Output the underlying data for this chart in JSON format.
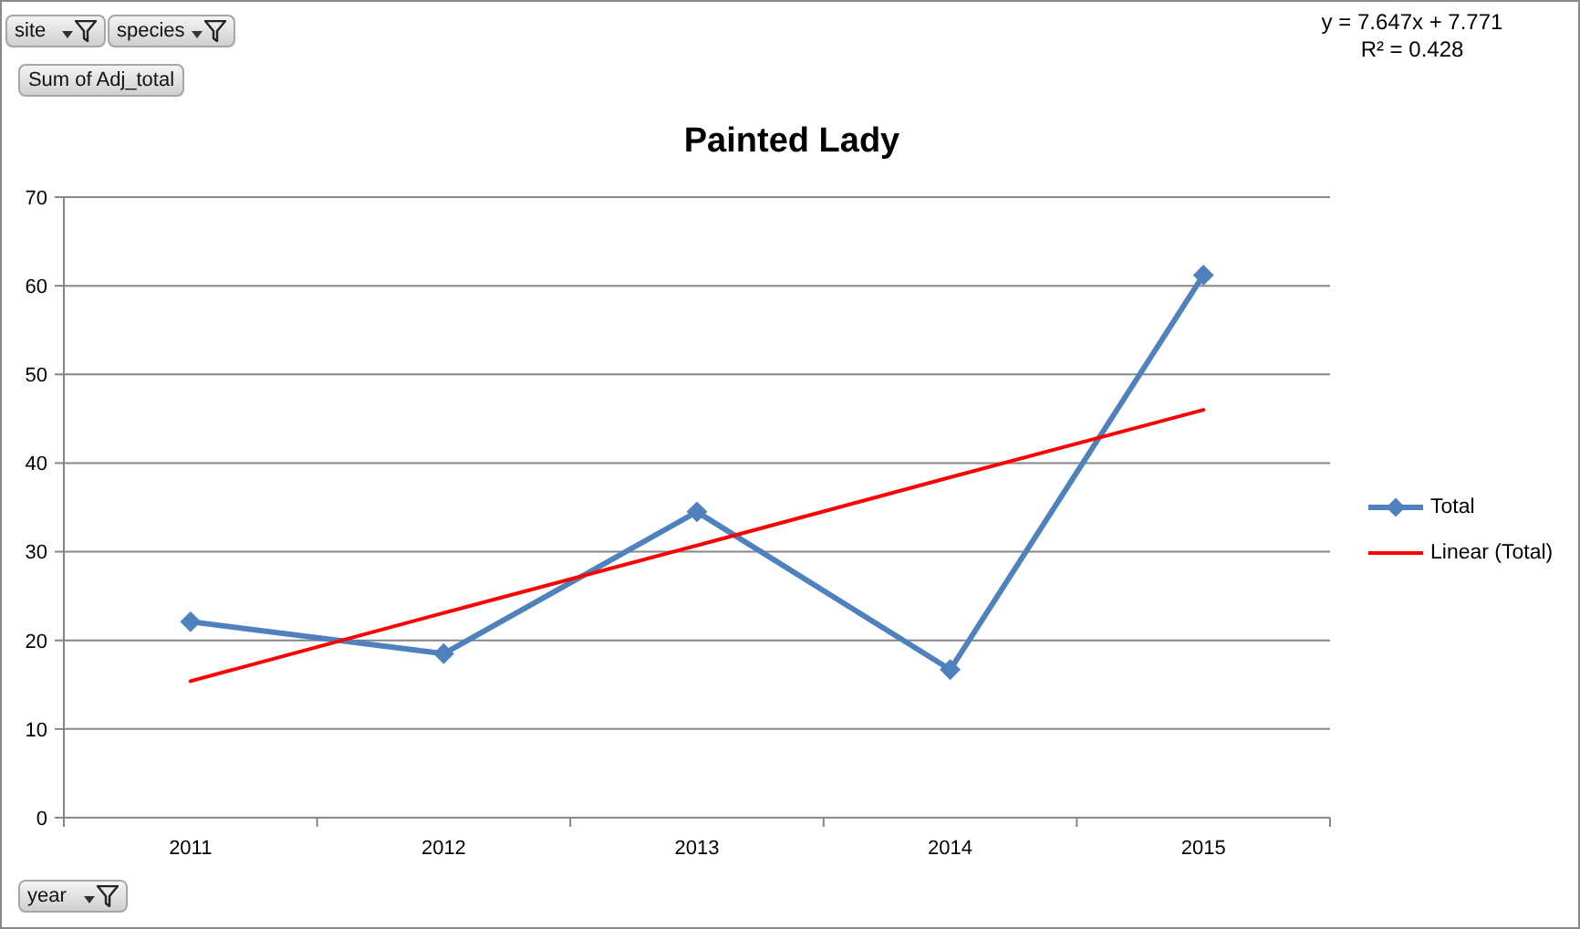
{
  "chart_data": {
    "type": "line",
    "title": "Painted Lady",
    "categories": [
      "2011",
      "2012",
      "2013",
      "2014",
      "2015"
    ],
    "series": [
      {
        "name": "Total",
        "color": "#4f81bd",
        "values": [
          22.1,
          18.5,
          34.5,
          16.7,
          61.2
        ]
      },
      {
        "name": "Linear (Total)",
        "type": "line",
        "color": "#ff0000",
        "values": [
          15.4,
          23.1,
          30.7,
          38.4,
          46
        ],
        "marker": "none"
      }
    ],
    "ylim": [
      0,
      70
    ],
    "yticks": [
      0,
      10,
      20,
      30,
      40,
      50,
      60,
      70
    ],
    "grid": "y",
    "legend": "right",
    "marker": "diamond",
    "annotations": [
      "site",
      "species",
      "Sum of Adj_total",
      "year",
      "y = 7.647x + 7.771",
      "R² = 0.428"
    ]
  }
}
